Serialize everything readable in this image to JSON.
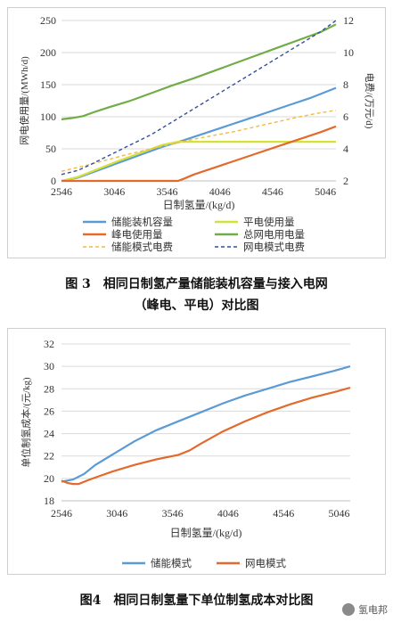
{
  "chart_data": [
    {
      "type": "line",
      "caption": "图 3　相同日制氢产量储能装机容量与接入电网（峰电、平电）对比图",
      "caption_line1": "图 3　相同日制氢产量储能装机容量与接入电网",
      "caption_line2": "（峰电、平电）对比图",
      "xlabel": "日制氢量/(kg/d)",
      "ylabel_left": "网电使用量/(MWh/d)",
      "ylabel_right": "电费/(万元/d)",
      "xlim": [
        2546,
        5146
      ],
      "xticks": [
        2546,
        3046,
        3546,
        4046,
        4546,
        5046
      ],
      "ylim_left": [
        0,
        250
      ],
      "yticks_left": [
        0,
        50,
        100,
        150,
        200,
        250
      ],
      "ylim_right": [
        2,
        12
      ],
      "yticks_right": [
        2,
        4,
        6,
        8,
        10,
        12
      ],
      "legend_position": "bottom",
      "series": [
        {
          "name": "储能装机容量",
          "color": "#5b9bd5",
          "dash": "solid",
          "axis": "left",
          "x": [
            2546,
            2700,
            2900,
            3100,
            3300,
            3500,
            3700,
            3900,
            4100,
            4300,
            4500,
            4700,
            4900,
            5146
          ],
          "y": [
            0,
            5,
            17,
            29,
            41,
            53,
            63,
            74,
            85,
            96,
            107,
            118,
            129,
            145
          ]
        },
        {
          "name": "平电使用量",
          "color": "#d6e03a",
          "dash": "solid",
          "axis": "left",
          "x": [
            2546,
            2700,
            2900,
            3100,
            3300,
            3500,
            3650,
            3800,
            4000,
            4200,
            4400,
            4600,
            4800,
            5146
          ],
          "y": [
            0,
            6,
            19,
            32,
            44,
            56,
            61,
            61,
            61,
            61,
            61,
            61,
            61,
            61
          ]
        },
        {
          "name": "峰电使用量",
          "color": "#e26a2c",
          "dash": "solid",
          "axis": "left",
          "x": [
            2546,
            3000,
            3500,
            3650,
            3700,
            3800,
            4000,
            4200,
            4400,
            4600,
            4800,
            5000,
            5146
          ],
          "y": [
            0,
            0,
            0,
            0,
            3,
            10,
            21,
            32,
            43,
            54,
            65,
            76,
            85
          ]
        },
        {
          "name": "总网电用电量",
          "color": "#70ad47",
          "dash": "solid",
          "axis": "left",
          "x": [
            2546,
            2650,
            2750,
            2850,
            3000,
            3200,
            3400,
            3600,
            3800,
            4000,
            4200,
            4400,
            4600,
            4800,
            5000,
            5146
          ],
          "y": [
            96,
            98,
            101,
            107,
            115,
            125,
            137,
            149,
            160,
            172,
            184,
            196,
            208,
            220,
            232,
            244
          ]
        },
        {
          "name": "储能模式电费",
          "color": "#f4b942",
          "dash": "dashed",
          "axis": "right",
          "x": [
            2546,
            2800,
            3000,
            3200,
            3400,
            3600,
            3800,
            4000,
            4200,
            4400,
            4600,
            4800,
            5000,
            5146
          ],
          "y": [
            2.6,
            3.0,
            3.35,
            3.7,
            4.0,
            4.3,
            4.6,
            4.85,
            5.1,
            5.4,
            5.7,
            6.0,
            6.25,
            6.4
          ]
        },
        {
          "name": "网电模式电费",
          "color": "#2f4fa2",
          "dash": "dashed",
          "axis": "right",
          "x": [
            2546,
            2700,
            2800,
            3000,
            3200,
            3400,
            3600,
            3800,
            4000,
            4200,
            4400,
            4600,
            4800,
            5000,
            5146
          ],
          "y": [
            2.4,
            2.65,
            2.95,
            3.6,
            4.25,
            4.9,
            5.7,
            6.5,
            7.3,
            8.1,
            8.9,
            9.7,
            10.5,
            11.3,
            12.0
          ]
        }
      ]
    },
    {
      "type": "line",
      "caption": "图4　相同日制氢量下单位制氢成本对比图",
      "xlabel": "日制氢量/(kg/d)",
      "ylabel": "单位制氢成本/(元/kg)",
      "xlim": [
        2546,
        5146
      ],
      "xticks": [
        2546,
        3046,
        3546,
        4046,
        4546,
        5046
      ],
      "ylim": [
        18,
        32
      ],
      "yticks": [
        18,
        20,
        22,
        24,
        26,
        28,
        30,
        32
      ],
      "legend_position": "bottom",
      "series": [
        {
          "name": "储能模式",
          "color": "#5b9bd5",
          "dash": "solid",
          "x": [
            2546,
            2650,
            2750,
            2850,
            3000,
            3200,
            3400,
            3600,
            3800,
            4000,
            4200,
            4400,
            4600,
            4800,
            5000,
            5146
          ],
          "y": [
            19.7,
            19.9,
            20.4,
            21.2,
            22.1,
            23.3,
            24.3,
            25.1,
            25.9,
            26.7,
            27.4,
            28.0,
            28.6,
            29.1,
            29.6,
            30.0
          ]
        },
        {
          "name": "网电模式",
          "color": "#e26a2c",
          "dash": "solid",
          "x": [
            2546,
            2600,
            2650,
            2700,
            2800,
            3000,
            3200,
            3400,
            3600,
            3700,
            3800,
            4000,
            4200,
            4400,
            4600,
            4800,
            5000,
            5146
          ],
          "y": [
            19.8,
            19.6,
            19.5,
            19.5,
            19.9,
            20.6,
            21.2,
            21.7,
            22.1,
            22.5,
            23.1,
            24.2,
            25.1,
            25.9,
            26.6,
            27.2,
            27.7,
            28.1
          ]
        }
      ]
    }
  ],
  "watermark": {
    "label": "氢电邦",
    "icon": "wechat-logo-icon"
  }
}
